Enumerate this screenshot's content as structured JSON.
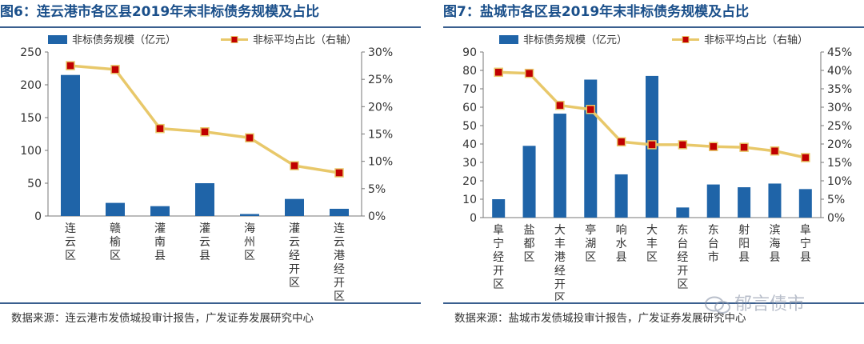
{
  "left": {
    "title": "图6：连云港市各区县2019年末非标债务规模及占比",
    "source": "数据来源：连云港市发债城投审计报告，广发证券发展研究中心",
    "legend": {
      "bar": "非标债务规模（亿元）",
      "line": "非标平均占比（右轴）"
    }
  },
  "right": {
    "title": "图7：盐城市各区县2019年末非标债务规模及占比",
    "source": "数据来源：盐城市发债城投审计报告，广发证券发展研究中心",
    "legend": {
      "bar": "非标债务规模（亿元）",
      "line": "非标平均占比（右轴）"
    }
  },
  "watermark": "郁言债市",
  "colors": {
    "bar": "#1f64a8",
    "line": "#e8c86a",
    "marker_fill": "#c00000",
    "marker_edge": "#e8c86a"
  },
  "chart_data": [
    {
      "type": "bar",
      "categories": [
        "连云区",
        "赣榆区",
        "灌南县",
        "灌云县",
        "海州区",
        "灌云经开区",
        "连云港经开区"
      ],
      "series": [
        {
          "name": "非标债务规模（亿元）",
          "axis": "left",
          "type": "bar",
          "values": [
            215,
            20,
            15,
            50,
            3,
            26,
            11
          ]
        },
        {
          "name": "非标平均占比（右轴）",
          "axis": "right",
          "type": "line",
          "values": [
            27.5,
            26.8,
            16.0,
            15.4,
            14.3,
            9.2,
            7.9
          ]
        }
      ],
      "ylim": [
        0,
        250
      ],
      "yticks": [
        0,
        50,
        100,
        150,
        200,
        250
      ],
      "y2lim": [
        0,
        30
      ],
      "y2ticks": [
        0,
        5,
        10,
        15,
        20,
        25,
        30
      ],
      "y2ticklabels": [
        "0%",
        "5%",
        "10%",
        "15%",
        "20%",
        "25%",
        "30%"
      ],
      "xlabel": "",
      "ylabel": ""
    },
    {
      "type": "bar",
      "categories": [
        "阜宁经开区",
        "盐都区",
        "大丰港经开区",
        "亭湖区",
        "响水县",
        "大丰区",
        "东台经开区",
        "东台市",
        "射阳县",
        "滨海县",
        "阜宁县"
      ],
      "series": [
        {
          "name": "非标债务规模（亿元）",
          "axis": "left",
          "type": "bar",
          "values": [
            10,
            39,
            56.5,
            75,
            23.5,
            77,
            5.5,
            18,
            16.5,
            18.5,
            15.5
          ]
        },
        {
          "name": "非标平均占比（右轴）",
          "axis": "right",
          "type": "line",
          "values": [
            39.5,
            39.2,
            30.5,
            29.4,
            20.6,
            19.8,
            19.8,
            19.3,
            19.1,
            18.1,
            16.3
          ]
        }
      ],
      "ylim": [
        0,
        90
      ],
      "yticks": [
        0,
        10,
        20,
        30,
        40,
        50,
        60,
        70,
        80,
        90
      ],
      "y2lim": [
        0,
        45
      ],
      "y2ticks": [
        0,
        5,
        10,
        15,
        20,
        25,
        30,
        35,
        40,
        45
      ],
      "y2ticklabels": [
        "0%",
        "5%",
        "10%",
        "15%",
        "20%",
        "25%",
        "30%",
        "35%",
        "40%",
        "45%"
      ],
      "xlabel": "",
      "ylabel": ""
    }
  ]
}
